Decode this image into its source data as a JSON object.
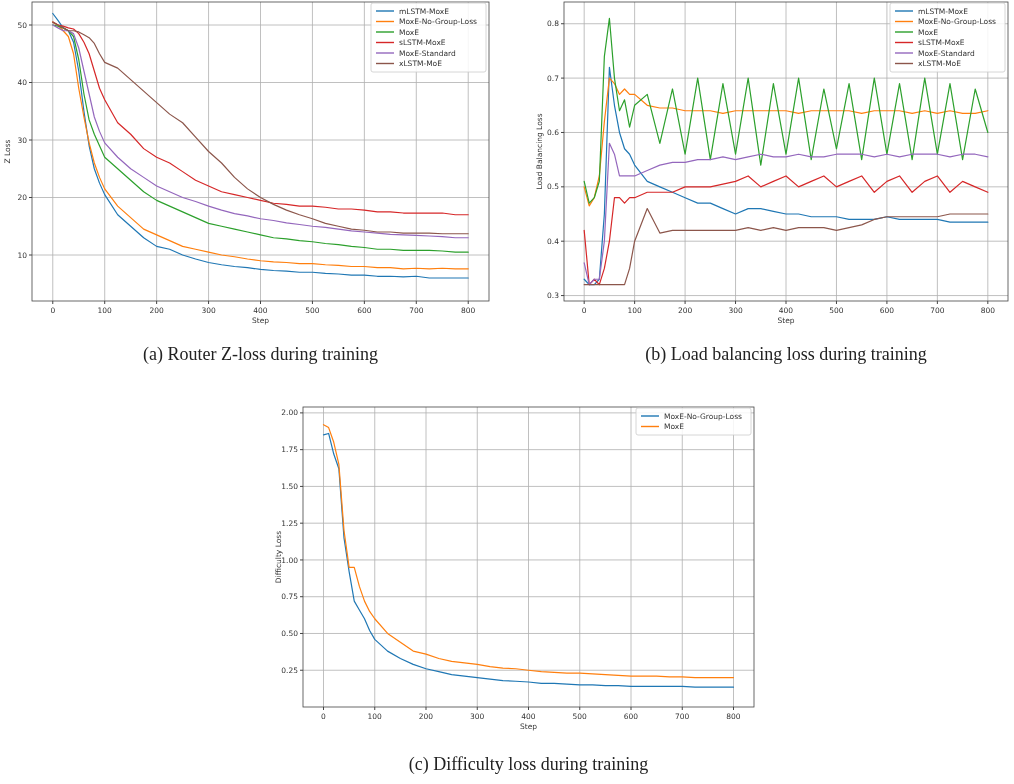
{
  "chart_data": [
    {
      "type": "line",
      "title": "(a) Router Z-loss during training",
      "xlabel": "Step",
      "ylabel": "Z Loss",
      "xlim": [
        -40,
        840
      ],
      "ylim": [
        2,
        54
      ],
      "xticks": [
        0,
        100,
        200,
        300,
        400,
        500,
        600,
        700,
        800
      ],
      "yticks": [
        10,
        20,
        30,
        40,
        50
      ],
      "grid": true,
      "legend": "top right",
      "marker": "none",
      "line_style": "solid",
      "x": [
        0,
        10,
        20,
        30,
        40,
        50,
        60,
        70,
        80,
        90,
        100,
        125,
        150,
        175,
        200,
        225,
        250,
        275,
        300,
        325,
        350,
        375,
        400,
        425,
        450,
        475,
        500,
        525,
        550,
        575,
        600,
        625,
        650,
        675,
        700,
        725,
        750,
        775,
        800
      ],
      "series": [
        {
          "name": "mLSTM-MoxE",
          "color": "#1f77b4",
          "values": [
            52,
            50.8,
            49.5,
            49,
            47,
            42,
            35,
            29,
            25,
            22.5,
            20.5,
            17,
            15,
            13,
            11.5,
            11,
            10,
            9.3,
            8.7,
            8.3,
            8,
            7.8,
            7.5,
            7.3,
            7.2,
            7,
            7,
            6.8,
            6.7,
            6.5,
            6.5,
            6.3,
            6.3,
            6.2,
            6.3,
            6,
            6,
            6,
            6
          ]
        },
        {
          "name": "MoxE-No-Group-Loss",
          "color": "#ff7f0e",
          "values": [
            50.5,
            50,
            49,
            48,
            45,
            39,
            34,
            29.5,
            26,
            23.5,
            21.5,
            18.5,
            16.5,
            14.5,
            13.5,
            12.5,
            11.5,
            11,
            10.5,
            10,
            9.7,
            9.3,
            9,
            8.8,
            8.7,
            8.5,
            8.5,
            8.3,
            8.2,
            8,
            8,
            7.8,
            7.8,
            7.6,
            7.7,
            7.6,
            7.7,
            7.6,
            7.6
          ]
        },
        {
          "name": "MoxE",
          "color": "#2ca02c",
          "values": [
            50,
            49.8,
            49.5,
            49,
            48,
            44,
            38,
            33.5,
            31,
            29,
            27,
            25,
            23,
            21,
            19.5,
            18.5,
            17.5,
            16.5,
            15.5,
            15,
            14.5,
            14,
            13.5,
            13,
            12.8,
            12.5,
            12.3,
            12,
            11.8,
            11.5,
            11.3,
            11,
            11,
            10.8,
            10.8,
            10.8,
            10.7,
            10.5,
            10.5
          ]
        },
        {
          "name": "sLSTM-MoxE",
          "color": "#d62728",
          "values": [
            50.5,
            50,
            49.8,
            49.5,
            49.3,
            48.5,
            47,
            45,
            42,
            39,
            37,
            33,
            31,
            28.5,
            27,
            26,
            24.5,
            23,
            22,
            21,
            20.5,
            20,
            19.5,
            19,
            18.8,
            18.5,
            18.5,
            18.3,
            18,
            18,
            17.8,
            17.5,
            17.5,
            17.3,
            17.3,
            17.3,
            17.3,
            17,
            17
          ]
        },
        {
          "name": "MoxE-Standard",
          "color": "#9467bd",
          "values": [
            50,
            49.5,
            49,
            49,
            48.5,
            46,
            42,
            38,
            34,
            31.5,
            29.5,
            27,
            25,
            23.5,
            22,
            21,
            20,
            19.3,
            18.5,
            17.8,
            17.2,
            16.8,
            16.3,
            16,
            15.6,
            15.3,
            15,
            14.8,
            14.5,
            14.2,
            14,
            13.8,
            13.6,
            13.5,
            13.4,
            13.3,
            13.2,
            13,
            13
          ]
        },
        {
          "name": "xLSTM-MoE",
          "color": "#8c564b",
          "values": [
            50.5,
            50,
            49.5,
            49,
            49,
            48.8,
            48.3,
            47.8,
            46.8,
            45,
            43.5,
            42.5,
            40.5,
            38.5,
            36.5,
            34.5,
            33,
            30.5,
            28,
            26,
            23.5,
            21.5,
            20,
            18.8,
            17.8,
            17,
            16.3,
            15.5,
            15,
            14.5,
            14.3,
            14,
            14,
            13.8,
            13.8,
            13.8,
            13.7,
            13.7,
            13.7
          ]
        }
      ]
    },
    {
      "type": "line",
      "title": "(b) Load balancing loss during training",
      "xlabel": "Step",
      "ylabel": "Load Balancing Loss",
      "xlim": [
        -40,
        840
      ],
      "ylim": [
        0.29,
        0.84
      ],
      "xticks": [
        0,
        100,
        200,
        300,
        400,
        500,
        600,
        700,
        800
      ],
      "yticks": [
        0.3,
        0.4,
        0.5,
        0.6,
        0.7,
        0.8
      ],
      "grid": true,
      "legend": "top right",
      "marker": "none",
      "line_style": "solid",
      "x": [
        0,
        10,
        20,
        30,
        40,
        50,
        60,
        70,
        80,
        90,
        100,
        125,
        150,
        175,
        200,
        225,
        250,
        275,
        300,
        325,
        350,
        375,
        400,
        425,
        450,
        475,
        500,
        525,
        550,
        575,
        600,
        625,
        650,
        675,
        700,
        725,
        750,
        775,
        800
      ],
      "series": [
        {
          "name": "mLSTM-MoxE",
          "color": "#1f77b4",
          "values": [
            0.33,
            0.32,
            0.32,
            0.33,
            0.45,
            0.72,
            0.65,
            0.6,
            0.57,
            0.56,
            0.54,
            0.51,
            0.5,
            0.49,
            0.48,
            0.47,
            0.47,
            0.46,
            0.45,
            0.46,
            0.46,
            0.455,
            0.45,
            0.45,
            0.445,
            0.445,
            0.445,
            0.44,
            0.44,
            0.44,
            0.445,
            0.44,
            0.44,
            0.44,
            0.44,
            0.435,
            0.435,
            0.435,
            0.435
          ]
        },
        {
          "name": "MoxE-No-Group-Loss",
          "color": "#ff7f0e",
          "values": [
            0.5,
            0.465,
            0.48,
            0.52,
            0.62,
            0.7,
            0.69,
            0.67,
            0.68,
            0.67,
            0.67,
            0.65,
            0.645,
            0.645,
            0.64,
            0.64,
            0.64,
            0.635,
            0.64,
            0.64,
            0.64,
            0.64,
            0.64,
            0.635,
            0.64,
            0.64,
            0.64,
            0.64,
            0.635,
            0.64,
            0.64,
            0.64,
            0.635,
            0.64,
            0.635,
            0.64,
            0.635,
            0.635,
            0.64
          ]
        },
        {
          "name": "MoxE",
          "color": "#2ca02c",
          "values": [
            0.51,
            0.47,
            0.48,
            0.51,
            0.74,
            0.81,
            0.7,
            0.64,
            0.66,
            0.61,
            0.65,
            0.67,
            0.58,
            0.68,
            0.56,
            0.7,
            0.55,
            0.69,
            0.56,
            0.7,
            0.54,
            0.69,
            0.56,
            0.7,
            0.55,
            0.68,
            0.57,
            0.69,
            0.55,
            0.7,
            0.56,
            0.69,
            0.55,
            0.7,
            0.56,
            0.69,
            0.55,
            0.68,
            0.6
          ]
        },
        {
          "name": "sLSTM-MoxE",
          "color": "#d62728",
          "values": [
            0.42,
            0.32,
            0.33,
            0.32,
            0.35,
            0.4,
            0.48,
            0.48,
            0.47,
            0.48,
            0.48,
            0.49,
            0.49,
            0.49,
            0.5,
            0.5,
            0.5,
            0.505,
            0.51,
            0.52,
            0.5,
            0.51,
            0.52,
            0.5,
            0.51,
            0.52,
            0.5,
            0.51,
            0.52,
            0.49,
            0.51,
            0.52,
            0.49,
            0.51,
            0.52,
            0.49,
            0.51,
            0.5,
            0.49
          ]
        },
        {
          "name": "MoxE-Standard",
          "color": "#9467bd",
          "values": [
            0.36,
            0.32,
            0.33,
            0.33,
            0.4,
            0.58,
            0.56,
            0.52,
            0.52,
            0.52,
            0.52,
            0.53,
            0.54,
            0.545,
            0.545,
            0.55,
            0.55,
            0.555,
            0.55,
            0.555,
            0.56,
            0.555,
            0.555,
            0.56,
            0.555,
            0.555,
            0.56,
            0.56,
            0.56,
            0.555,
            0.56,
            0.555,
            0.56,
            0.56,
            0.56,
            0.555,
            0.56,
            0.56,
            0.555
          ]
        },
        {
          "name": "xLSTM-MoE",
          "color": "#8c564b",
          "values": [
            0.32,
            0.32,
            0.32,
            0.32,
            0.32,
            0.32,
            0.32,
            0.32,
            0.32,
            0.35,
            0.4,
            0.46,
            0.415,
            0.42,
            0.42,
            0.42,
            0.42,
            0.42,
            0.42,
            0.425,
            0.42,
            0.425,
            0.42,
            0.425,
            0.425,
            0.425,
            0.42,
            0.425,
            0.43,
            0.44,
            0.445,
            0.445,
            0.445,
            0.445,
            0.445,
            0.45,
            0.45,
            0.45,
            0.45
          ]
        }
      ]
    },
    {
      "type": "line",
      "title": "(c) Difficulty loss during training",
      "xlabel": "Step",
      "ylabel": "Difficulty Loss",
      "xlim": [
        -40,
        840
      ],
      "ylim": [
        0,
        2.04
      ],
      "xticks": [
        0,
        100,
        200,
        300,
        400,
        500,
        600,
        700,
        800
      ],
      "yticks": [
        {
          "value": 0.25,
          "label": "0.25"
        },
        {
          "value": 0.5,
          "label": "0.50"
        },
        {
          "value": 0.75,
          "label": "0.75"
        },
        {
          "value": 1,
          "label": "1.00"
        },
        {
          "value": 1.25,
          "label": "1.25"
        },
        {
          "value": 1.5,
          "label": "1.50"
        },
        {
          "value": 1.75,
          "label": "1.75"
        },
        {
          "value": 2,
          "label": "2.00"
        }
      ],
      "grid": true,
      "legend": "top right",
      "marker": "none",
      "line_style": "solid",
      "x": [
        0,
        10,
        20,
        30,
        40,
        50,
        60,
        70,
        80,
        90,
        100,
        125,
        150,
        175,
        200,
        225,
        250,
        275,
        300,
        325,
        350,
        375,
        400,
        425,
        450,
        475,
        500,
        525,
        550,
        575,
        600,
        625,
        650,
        675,
        700,
        725,
        750,
        775,
        800
      ],
      "series": [
        {
          "name": "MoxE-No-Group-Loss",
          "color": "#1f77b4",
          "values": [
            1.85,
            1.86,
            1.72,
            1.62,
            1.15,
            0.92,
            0.72,
            0.66,
            0.6,
            0.52,
            0.46,
            0.38,
            0.33,
            0.29,
            0.26,
            0.24,
            0.22,
            0.21,
            0.2,
            0.19,
            0.18,
            0.175,
            0.17,
            0.16,
            0.16,
            0.155,
            0.15,
            0.15,
            0.145,
            0.145,
            0.14,
            0.14,
            0.14,
            0.14,
            0.14,
            0.135,
            0.135,
            0.135,
            0.135
          ]
        },
        {
          "name": "MoxE",
          "color": "#ff7f0e",
          "values": [
            1.92,
            1.9,
            1.8,
            1.65,
            1.2,
            0.95,
            0.95,
            0.82,
            0.72,
            0.65,
            0.6,
            0.5,
            0.44,
            0.38,
            0.36,
            0.33,
            0.31,
            0.3,
            0.29,
            0.275,
            0.265,
            0.26,
            0.25,
            0.24,
            0.235,
            0.23,
            0.23,
            0.225,
            0.22,
            0.215,
            0.21,
            0.21,
            0.21,
            0.205,
            0.205,
            0.2,
            0.2,
            0.2,
            0.2
          ]
        }
      ]
    }
  ]
}
